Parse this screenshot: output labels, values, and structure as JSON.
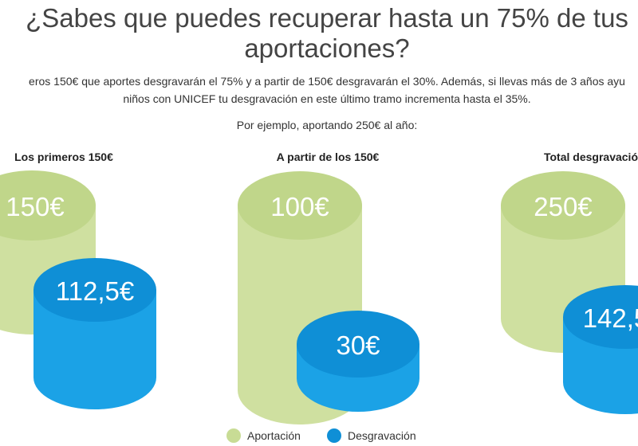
{
  "heading": {
    "line1": "¿Sabes que puedes recuperar hasta un 75% de tus",
    "line2": "aportaciones?"
  },
  "description": {
    "line1": "eros 150€ que aportes desgravarán el 75% y a partir de 150€ desgravarán el 30%. Además, si llevas más de 3 años ayu",
    "line2": "niños con UNICEF tu desgravación en este último tramo incrementa hasta el 35%."
  },
  "example_text": "Por ejemplo, aportando 250€ al año:",
  "columns": [
    {
      "title": "Los primeros 150€",
      "aportacion": "150€",
      "desgravacion": "112,5€"
    },
    {
      "title": "A partir de los 150€",
      "aportacion": "100€",
      "desgravacion": "30€"
    },
    {
      "title": "Total desgravació",
      "aportacion": "250€",
      "desgravacion": "142,5"
    }
  ],
  "legend": {
    "aportacion": "Aportación",
    "desgravacion": "Desgravación"
  },
  "colors": {
    "aportacion_side": "#cfe0a0",
    "aportacion_top": "#c0d68a",
    "desgravacion_side": "#1ba2e6",
    "desgravacion_top": "#0f8fd6",
    "background": "#ffffff"
  }
}
